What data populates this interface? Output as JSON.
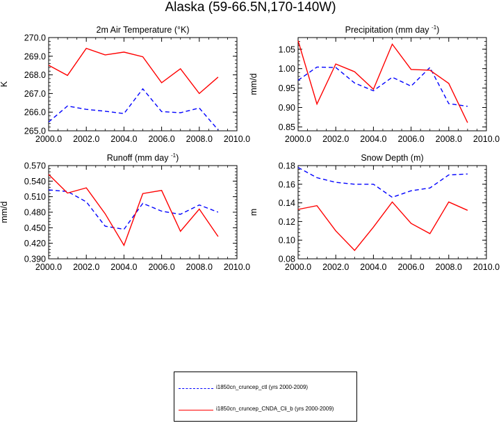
{
  "title": "Alaska (59-66.5N,170-140W)",
  "legend": [
    {
      "label": "i1850cn_cruncep_ctl (yrs 2000-2009)",
      "color": "#0000ff",
      "dash": true
    },
    {
      "label": "i1850cn_cruncep_CNDA_Cli_b (yrs 2000-2009)",
      "color": "#ff0000",
      "dash": false
    }
  ],
  "chart_data": [
    {
      "type": "line",
      "title": "2m Air Temperature (°K)",
      "ylabel": "K",
      "xlim": [
        2000,
        2010
      ],
      "ylim": [
        265,
        270
      ],
      "xticks": [
        "2000.0",
        "2002.0",
        "2004.0",
        "2006.0",
        "2008.0",
        "2010.0"
      ],
      "yticks": [
        "265.0",
        "266.0",
        "267.0",
        "268.0",
        "269.0",
        "270.0"
      ],
      "x": [
        2000,
        2001,
        2002,
        2003,
        2004,
        2005,
        2006,
        2007,
        2008,
        2009
      ],
      "series": [
        {
          "values": [
            265.47,
            266.33,
            266.15,
            266.05,
            265.92,
            267.25,
            266.03,
            265.97,
            266.22,
            265.05
          ],
          "color": "#0000ff",
          "dash": true
        },
        {
          "values": [
            268.52,
            267.97,
            269.42,
            269.07,
            269.22,
            268.97,
            267.58,
            268.33,
            267.0,
            267.88
          ],
          "color": "#ff0000",
          "dash": false
        }
      ]
    },
    {
      "type": "line",
      "title": "Precipitation (mm day-1)",
      "ylabel": "mm/d",
      "xlim": [
        2000,
        2010
      ],
      "ylim": [
        0.84,
        1.08
      ],
      "xticks": [
        "2000.0",
        "2002.0",
        "2004.0",
        "2006.0",
        "2008.0",
        "2010.0"
      ],
      "yticks": [
        "0.85",
        "0.90",
        "0.95",
        "1.00",
        "1.05"
      ],
      "yticks_values": [
        0.85,
        0.9,
        0.95,
        1.0,
        1.05
      ],
      "x": [
        2000,
        2001,
        2002,
        2003,
        2004,
        2005,
        2006,
        2007,
        2008,
        2009
      ],
      "series": [
        {
          "values": [
            0.97,
            1.004,
            1.003,
            0.963,
            0.943,
            0.978,
            0.955,
            1.003,
            0.91,
            0.903
          ],
          "color": "#0000ff",
          "dash": true
        },
        {
          "values": [
            1.072,
            0.909,
            1.012,
            0.992,
            0.947,
            1.063,
            0.998,
            0.996,
            0.962,
            0.861
          ],
          "color": "#ff0000",
          "dash": false
        }
      ]
    },
    {
      "type": "line",
      "title": "Runoff (mm day-1)",
      "ylabel": "mm/d",
      "xlim": [
        2000,
        2010
      ],
      "ylim": [
        0.39,
        0.57
      ],
      "xticks": [
        "2000.0",
        "2002.0",
        "2004.0",
        "2006.0",
        "2008.0",
        "2010.0"
      ],
      "yticks": [
        "0.390",
        "0.420",
        "0.450",
        "0.480",
        "0.510",
        "0.540",
        "0.570"
      ],
      "x": [
        2000,
        2001,
        2002,
        2003,
        2004,
        2005,
        2006,
        2007,
        2008,
        2009
      ],
      "series": [
        {
          "values": [
            0.523,
            0.52,
            0.5,
            0.453,
            0.447,
            0.497,
            0.482,
            0.476,
            0.494,
            0.48
          ],
          "color": "#0000ff",
          "dash": true
        },
        {
          "values": [
            0.553,
            0.517,
            0.527,
            0.477,
            0.416,
            0.516,
            0.522,
            0.443,
            0.486,
            0.433
          ],
          "color": "#ff0000",
          "dash": false
        }
      ]
    },
    {
      "type": "line",
      "title": "Snow Depth (m)",
      "ylabel": "m",
      "xlim": [
        2000,
        2010
      ],
      "ylim": [
        0.08,
        0.18
      ],
      "xticks": [
        "2000.0",
        "2002.0",
        "2004.0",
        "2006.0",
        "2008.0",
        "2010.0"
      ],
      "yticks": [
        "0.08",
        "0.10",
        "0.12",
        "0.14",
        "0.16",
        "0.18"
      ],
      "x": [
        2000,
        2001,
        2002,
        2003,
        2004,
        2005,
        2006,
        2007,
        2008,
        2009
      ],
      "series": [
        {
          "values": [
            0.178,
            0.167,
            0.162,
            0.16,
            0.16,
            0.146,
            0.153,
            0.156,
            0.17,
            0.171
          ],
          "color": "#0000ff",
          "dash": true
        },
        {
          "values": [
            0.133,
            0.137,
            0.11,
            0.089,
            0.114,
            0.141,
            0.118,
            0.107,
            0.141,
            0.132
          ],
          "color": "#ff0000",
          "dash": false
        }
      ]
    }
  ]
}
